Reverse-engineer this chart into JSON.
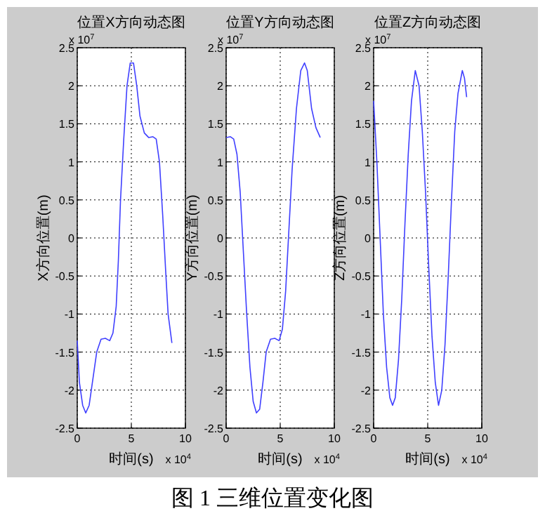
{
  "chart_data": [
    {
      "type": "line",
      "title": "位置X方向动态图",
      "xlabel": "时间(s)",
      "ylabel": "X方向位置(m)",
      "annotations": [
        "x 10$^{7}$",
        "x 10$^{4}$",
        "图 1  三维位置变化图"
      ],
      "x": [
        0,
        0.2,
        0.5,
        0.78,
        1.1,
        1.4,
        1.8,
        2.2,
        2.6,
        3.0,
        3.3,
        3.6,
        3.8,
        4.0,
        4.3,
        4.6,
        4.9,
        5.2,
        5.5,
        5.8,
        6.2,
        6.6,
        7.0,
        7.3,
        7.6,
        7.9,
        8.2,
        8.4,
        8.75
      ],
      "series": [
        {
          "color": "#4040ff",
          "values": [
            -1.35,
            -1.9,
            -2.2,
            -2.3,
            -2.2,
            -1.9,
            -1.5,
            -1.33,
            -1.32,
            -1.35,
            -1.25,
            -0.9,
            -0.3,
            0.5,
            1.3,
            2.0,
            2.3,
            2.3,
            2.0,
            1.6,
            1.38,
            1.32,
            1.33,
            1.3,
            1.0,
            0.3,
            -0.5,
            -1.0,
            -1.38
          ]
        }
      ],
      "xlim": [
        0,
        10
      ],
      "ylim": [
        -2.5,
        2.5
      ],
      "xticks": [
        0,
        5,
        10
      ],
      "yticks": [
        -2.5,
        -2,
        -1.5,
        -1,
        -0.5,
        0,
        0.5,
        1,
        1.5,
        2,
        2.5
      ],
      "grid": true
    },
    {
      "type": "line",
      "title": "位置Y方向动态图",
      "xlabel": "时间(s)",
      "ylabel": "Y方向位置(m)",
      "annotations": [
        "x 10$^{7}$",
        "x 10$^{4}$"
      ],
      "x": [
        0,
        0.4,
        0.7,
        1.0,
        1.3,
        1.6,
        1.9,
        2.2,
        2.5,
        2.8,
        3.1,
        3.4,
        3.7,
        4.1,
        4.5,
        4.9,
        5.2,
        5.5,
        5.8,
        6.1,
        6.5,
        6.9,
        7.25,
        7.5,
        7.9,
        8.3,
        8.7
      ],
      "series": [
        {
          "color": "#4040ff",
          "values": [
            1.32,
            1.33,
            1.3,
            1.1,
            0.6,
            -0.2,
            -1.0,
            -1.7,
            -2.15,
            -2.3,
            -2.25,
            -1.9,
            -1.5,
            -1.33,
            -1.32,
            -1.35,
            -1.2,
            -0.7,
            0.1,
            0.9,
            1.7,
            2.2,
            2.3,
            2.2,
            1.7,
            1.45,
            1.32
          ]
        }
      ],
      "xlim": [
        0,
        10
      ],
      "ylim": [
        -2.5,
        2.5
      ],
      "xticks": [
        0,
        5,
        10
      ],
      "yticks": [
        -2.5,
        -2,
        -1.5,
        -1,
        -0.5,
        0,
        0.5,
        1,
        1.5,
        2,
        2.5
      ],
      "grid": true
    },
    {
      "type": "line",
      "title": "位置Z方向动态图",
      "xlabel": "时间(s)",
      "ylabel": "Z方向位置(m)",
      "annotations": [
        "x 10$^{7}$",
        "x 10$^{4}$"
      ],
      "x": [
        0,
        0.3,
        0.6,
        0.9,
        1.2,
        1.5,
        1.75,
        2.0,
        2.3,
        2.6,
        2.9,
        3.2,
        3.5,
        3.85,
        4.2,
        4.5,
        4.8,
        5.1,
        5.4,
        5.7,
        6.0,
        6.3,
        6.6,
        6.9,
        7.2,
        7.5,
        7.8,
        8.2,
        8.4,
        8.6
      ],
      "series": [
        {
          "color": "#4040ff",
          "values": [
            1.8,
            1.0,
            0,
            -1.0,
            -1.7,
            -2.1,
            -2.2,
            -2.1,
            -1.6,
            -0.8,
            0.2,
            1.1,
            1.8,
            2.2,
            2.0,
            1.4,
            0.6,
            -0.4,
            -1.3,
            -1.9,
            -2.2,
            -2.0,
            -1.4,
            -0.5,
            0.5,
            1.4,
            1.9,
            2.2,
            2.1,
            1.85
          ]
        }
      ],
      "xlim": [
        0,
        10
      ],
      "ylim": [
        -2.5,
        2.5
      ],
      "xticks": [
        0,
        5,
        10
      ],
      "yticks": [
        -2.5,
        -2,
        -1.5,
        -1,
        -0.5,
        0,
        0.5,
        1,
        1.5,
        2,
        2.5
      ],
      "grid": true
    }
  ]
}
